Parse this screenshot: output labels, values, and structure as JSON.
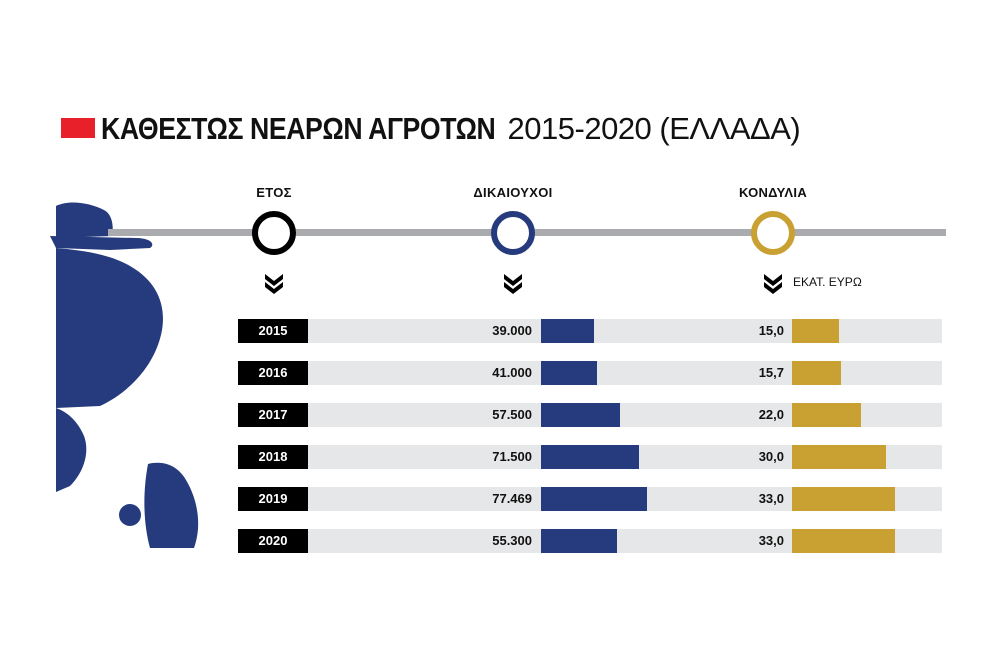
{
  "title": {
    "bold": "ΚΑΘΕΣΤΩΣ ΝΕΑΡΩΝ ΑΓΡΟΤΩΝ",
    "light": "2015-2020 (ΕΛΛΑΔΑ)"
  },
  "columns": {
    "year": "ΕΤΟΣ",
    "beneficiaries": "ΔΙΚΑΙΟΥΧΟΙ",
    "funds": "ΚΟΝΔΥΛΙΑ",
    "funds_unit": "ΕΚΑΤ. ΕΥΡΩ"
  },
  "colors": {
    "accent_red": "#e8202a",
    "beneficiaries_bar": "#263a7e",
    "funds_bar": "#c9a032",
    "row_background": "#e6e7e8",
    "year_box": "#000000",
    "silhouette": "#263a7e"
  },
  "chart_data": {
    "type": "bar",
    "categories": [
      "2015",
      "2016",
      "2017",
      "2018",
      "2019",
      "2020"
    ],
    "series": [
      {
        "name": "ΔΙΚΑΙΟΥΧΟΙ",
        "values": [
          39000,
          41000,
          57500,
          71500,
          77469,
          55300
        ],
        "labels": [
          "39.000",
          "41.000",
          "57.500",
          "71.500",
          "77.469",
          "55.300"
        ]
      },
      {
        "name": "ΚΟΝΔΥΛΙΑ",
        "values": [
          15.0,
          15.7,
          22.0,
          30.0,
          33.0,
          33.0
        ],
        "labels": [
          "15,0",
          "15,7",
          "22,0",
          "30,0",
          "33,0",
          "33,0"
        ]
      }
    ],
    "title": "ΚΑΘΕΣΤΩΣ ΝΕΑΡΩΝ ΑΓΡΟΤΩΝ 2015-2020 (ΕΛΛΑΔΑ)",
    "orientation": "horizontal",
    "grid": false,
    "legend": "none"
  }
}
